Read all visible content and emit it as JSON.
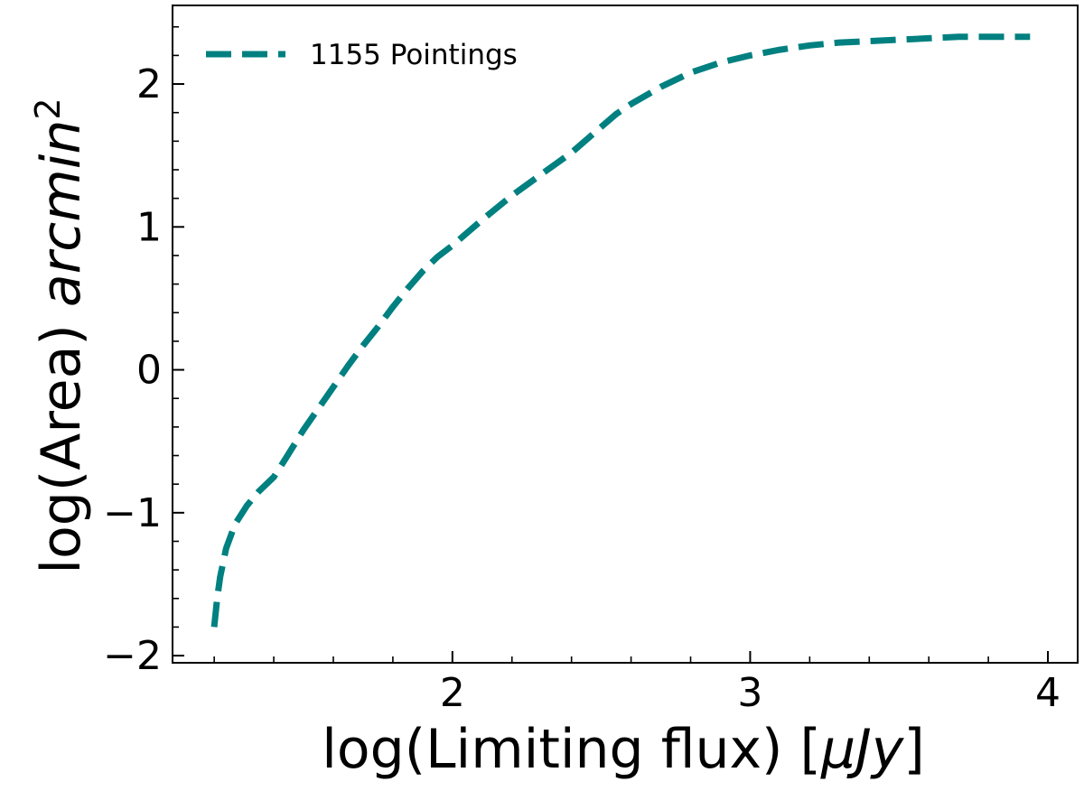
{
  "chart_data": {
    "type": "line",
    "xlabel_main": "log(Limiting flux) [",
    "xlabel_unit": "μJy",
    "xlabel_close": "]",
    "ylabel_main": "log(Area) ",
    "ylabel_unit": "arcmin",
    "ylabel_exp": "2",
    "xlim": [
      1.06,
      4.1
    ],
    "ylim": [
      -2.05,
      2.55
    ],
    "xticks": [
      2,
      3,
      4
    ],
    "yticks": [
      -2,
      -1,
      0,
      1,
      2
    ],
    "x_minor_step": 0.2,
    "y_minor_step": 0.2,
    "grid": false,
    "legend_position": "top-left",
    "series": [
      {
        "name": "1155 Pointings",
        "color": "#008080",
        "style": "dashed",
        "x": [
          1.2,
          1.21,
          1.22,
          1.24,
          1.27,
          1.31,
          1.35,
          1.4,
          1.44,
          1.5,
          1.55,
          1.6,
          1.65,
          1.7,
          1.75,
          1.8,
          1.85,
          1.9,
          1.95,
          2.0,
          2.1,
          2.2,
          2.3,
          2.4,
          2.5,
          2.55,
          2.6,
          2.7,
          2.8,
          2.9,
          3.0,
          3.1,
          3.2,
          3.3,
          3.4,
          3.5,
          3.6,
          3.7,
          3.8,
          3.94
        ],
        "y": [
          -1.8,
          -1.6,
          -1.45,
          -1.25,
          -1.08,
          -0.95,
          -0.85,
          -0.75,
          -0.62,
          -0.42,
          -0.27,
          -0.12,
          0.03,
          0.17,
          0.3,
          0.44,
          0.57,
          0.69,
          0.79,
          0.87,
          1.05,
          1.22,
          1.37,
          1.52,
          1.7,
          1.79,
          1.86,
          1.98,
          2.08,
          2.15,
          2.2,
          2.24,
          2.27,
          2.29,
          2.3,
          2.31,
          2.32,
          2.33,
          2.33,
          2.33
        ]
      }
    ]
  }
}
